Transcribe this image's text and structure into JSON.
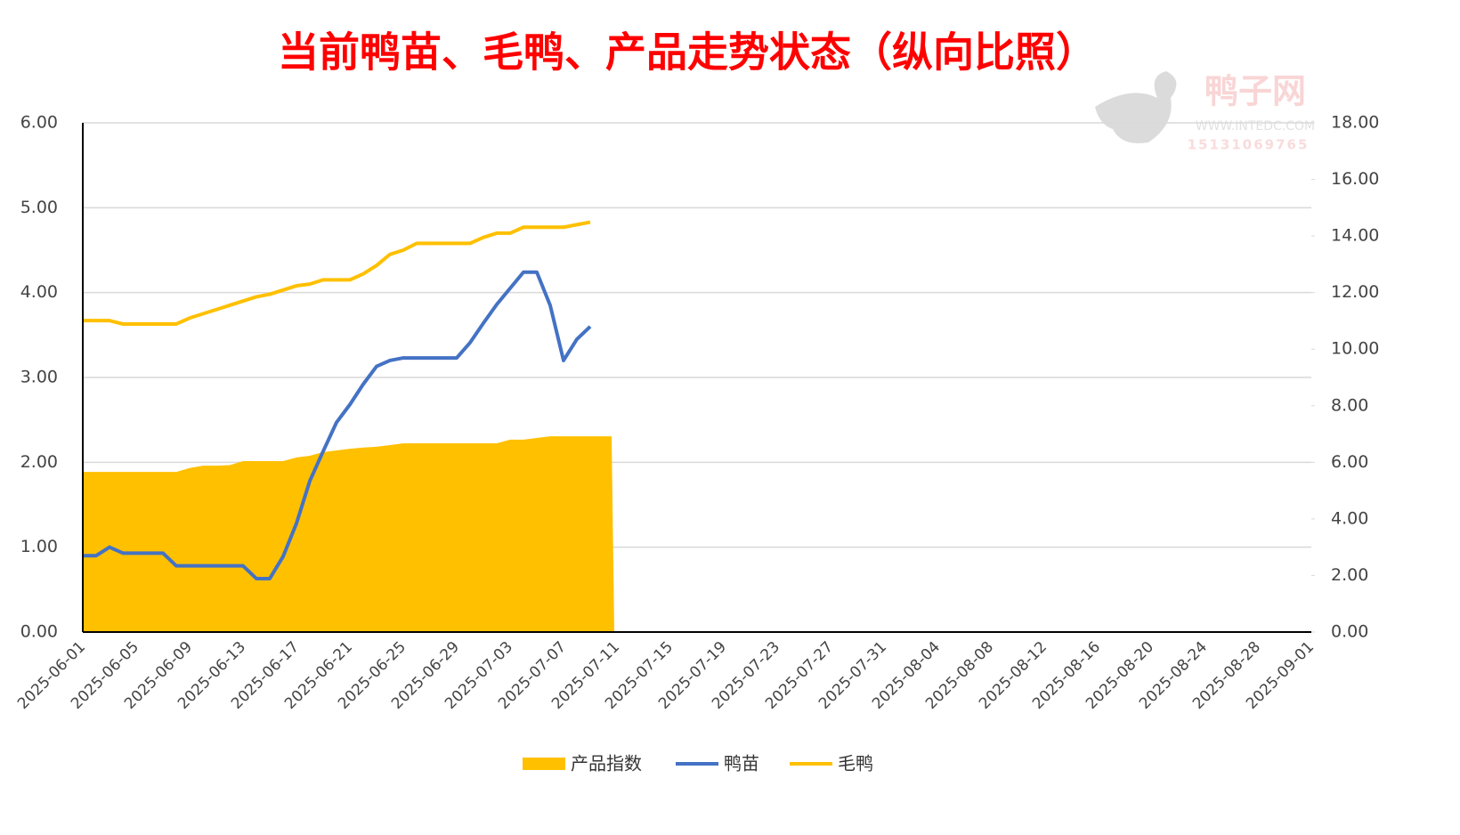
{
  "chart_data": {
    "type": "combo",
    "title": "当前鸭苗、毛鸭、产品走势状态（纵向比照）",
    "watermark": {
      "name": "鸭子网",
      "site": "WWW.INTEDC.COM",
      "phone": "15131069765"
    },
    "categories": [
      "2025-06-01",
      null,
      null,
      null,
      "2025-06-05",
      null,
      null,
      null,
      "2025-06-09",
      null,
      null,
      null,
      "2025-06-13",
      null,
      null,
      null,
      "2025-06-17",
      null,
      null,
      null,
      "2025-06-21",
      null,
      null,
      null,
      "2025-06-25",
      null,
      null,
      null,
      "2025-06-29",
      null,
      null,
      null,
      "2025-07-03",
      null,
      null,
      null,
      "2025-07-07",
      null,
      null,
      null,
      "2025-07-11",
      null,
      null,
      null,
      "2025-07-15",
      null,
      null,
      null,
      "2025-07-19",
      null,
      null,
      null,
      "2025-07-23",
      null,
      null,
      null,
      "2025-07-27",
      null,
      null,
      null,
      "2025-07-31",
      null,
      null,
      null,
      "2025-08-04",
      null,
      null,
      null,
      "2025-08-08",
      null,
      null,
      null,
      "2025-08-12",
      null,
      null,
      null,
      "2025-08-16",
      null,
      null,
      null,
      "2025-08-20",
      null,
      null,
      null,
      "2025-08-24",
      null,
      null,
      null,
      "2025-08-28",
      null,
      null,
      null,
      "2025-09-01"
    ],
    "series": [
      {
        "name": "产品指数",
        "kind": "area",
        "axis": "y2",
        "color": "#ffc000",
        "values": [
          5.66,
          5.66,
          5.66,
          5.66,
          5.66,
          5.66,
          5.66,
          5.66,
          5.8,
          5.88,
          5.88,
          5.9,
          6.04,
          6.04,
          6.04,
          6.04,
          6.17,
          6.23,
          6.36,
          6.42,
          6.48,
          6.52,
          6.55,
          6.61,
          6.67,
          6.67,
          6.67,
          6.67,
          6.67,
          6.67,
          6.67,
          6.67,
          6.8,
          6.8,
          6.86,
          6.92,
          6.92,
          6.92,
          6.92,
          6.92,
          null,
          null,
          null,
          null,
          null,
          null,
          null,
          null,
          null,
          null,
          null,
          null,
          null,
          null,
          null,
          null,
          null,
          null,
          null,
          null,
          null,
          null,
          null,
          null,
          null,
          null,
          null,
          null,
          null,
          null,
          null,
          null,
          null,
          null,
          null,
          null,
          null,
          null,
          null,
          null,
          null,
          null,
          null,
          null,
          null,
          null,
          null,
          null,
          null,
          null,
          null,
          null,
          null
        ]
      },
      {
        "name": "鸭苗",
        "kind": "line",
        "color": "#4472c4",
        "values": [
          0.9,
          0.9,
          1.0,
          0.93,
          0.93,
          0.93,
          0.93,
          0.78,
          0.78,
          0.78,
          0.78,
          0.78,
          0.78,
          0.63,
          0.63,
          0.89,
          1.28,
          1.78,
          2.13,
          2.47,
          2.68,
          2.92,
          3.13,
          3.2,
          3.23,
          3.23,
          3.23,
          3.23,
          3.23,
          3.41,
          3.64,
          3.86,
          4.05,
          4.24,
          4.24,
          3.85,
          3.2,
          3.45,
          3.6,
          null,
          null,
          null,
          null,
          null,
          null,
          null,
          null,
          null,
          null,
          null,
          null,
          null,
          null,
          null,
          null,
          null,
          null,
          null,
          null,
          null,
          null,
          null,
          null,
          null,
          null,
          null,
          null,
          null,
          null,
          null,
          null,
          null,
          null,
          null,
          null,
          null,
          null,
          null,
          null,
          null,
          null,
          null,
          null,
          null,
          null,
          null,
          null,
          null,
          null,
          null,
          null,
          null,
          null
        ]
      },
      {
        "name": "毛鸭",
        "kind": "line",
        "color": "#ffc000",
        "values": [
          3.67,
          3.67,
          3.67,
          3.63,
          3.63,
          3.63,
          3.63,
          3.63,
          3.7,
          3.75,
          3.8,
          3.85,
          3.9,
          3.95,
          3.98,
          4.03,
          4.08,
          4.1,
          4.15,
          4.15,
          4.15,
          4.22,
          4.32,
          4.45,
          4.5,
          4.58,
          4.58,
          4.58,
          4.58,
          4.58,
          4.65,
          4.7,
          4.7,
          4.77,
          4.77,
          4.77,
          4.77,
          4.8,
          4.83,
          null,
          null,
          null,
          null,
          null,
          null,
          null,
          null,
          null,
          null,
          null,
          null,
          null,
          null,
          null,
          null,
          null,
          null,
          null,
          null,
          null,
          null,
          null,
          null,
          null,
          null,
          null,
          null,
          null,
          null,
          null,
          null,
          null,
          null,
          null,
          null,
          null,
          null,
          null,
          null,
          null,
          null,
          null,
          null,
          null,
          null,
          null,
          null,
          null,
          null,
          null,
          null,
          null,
          null
        ]
      }
    ],
    "ylim": [
      0,
      6
    ],
    "yticks": [
      {
        "value": 0,
        "label": "0.00"
      },
      {
        "value": 1,
        "label": "1.00"
      },
      {
        "value": 2,
        "label": "2.00"
      },
      {
        "value": 3,
        "label": "3.00"
      },
      {
        "value": 4,
        "label": "4.00"
      },
      {
        "value": 5,
        "label": "5.00"
      },
      {
        "value": 6,
        "label": "6.00"
      }
    ],
    "y2lim": [
      0,
      18
    ],
    "y2ticks": [
      {
        "value": 0,
        "label": "0.00"
      },
      {
        "value": 2,
        "label": "2.00"
      },
      {
        "value": 4,
        "label": "4.00"
      },
      {
        "value": 6,
        "label": "6.00"
      },
      {
        "value": 8,
        "label": "8.00"
      },
      {
        "value": 10,
        "label": "10.00"
      },
      {
        "value": 12,
        "label": "12.00"
      },
      {
        "value": 14,
        "label": "14.00"
      },
      {
        "value": 16,
        "label": "16.00"
      },
      {
        "value": 18,
        "label": "18.00"
      }
    ],
    "grid": true,
    "legend": "bottom"
  }
}
